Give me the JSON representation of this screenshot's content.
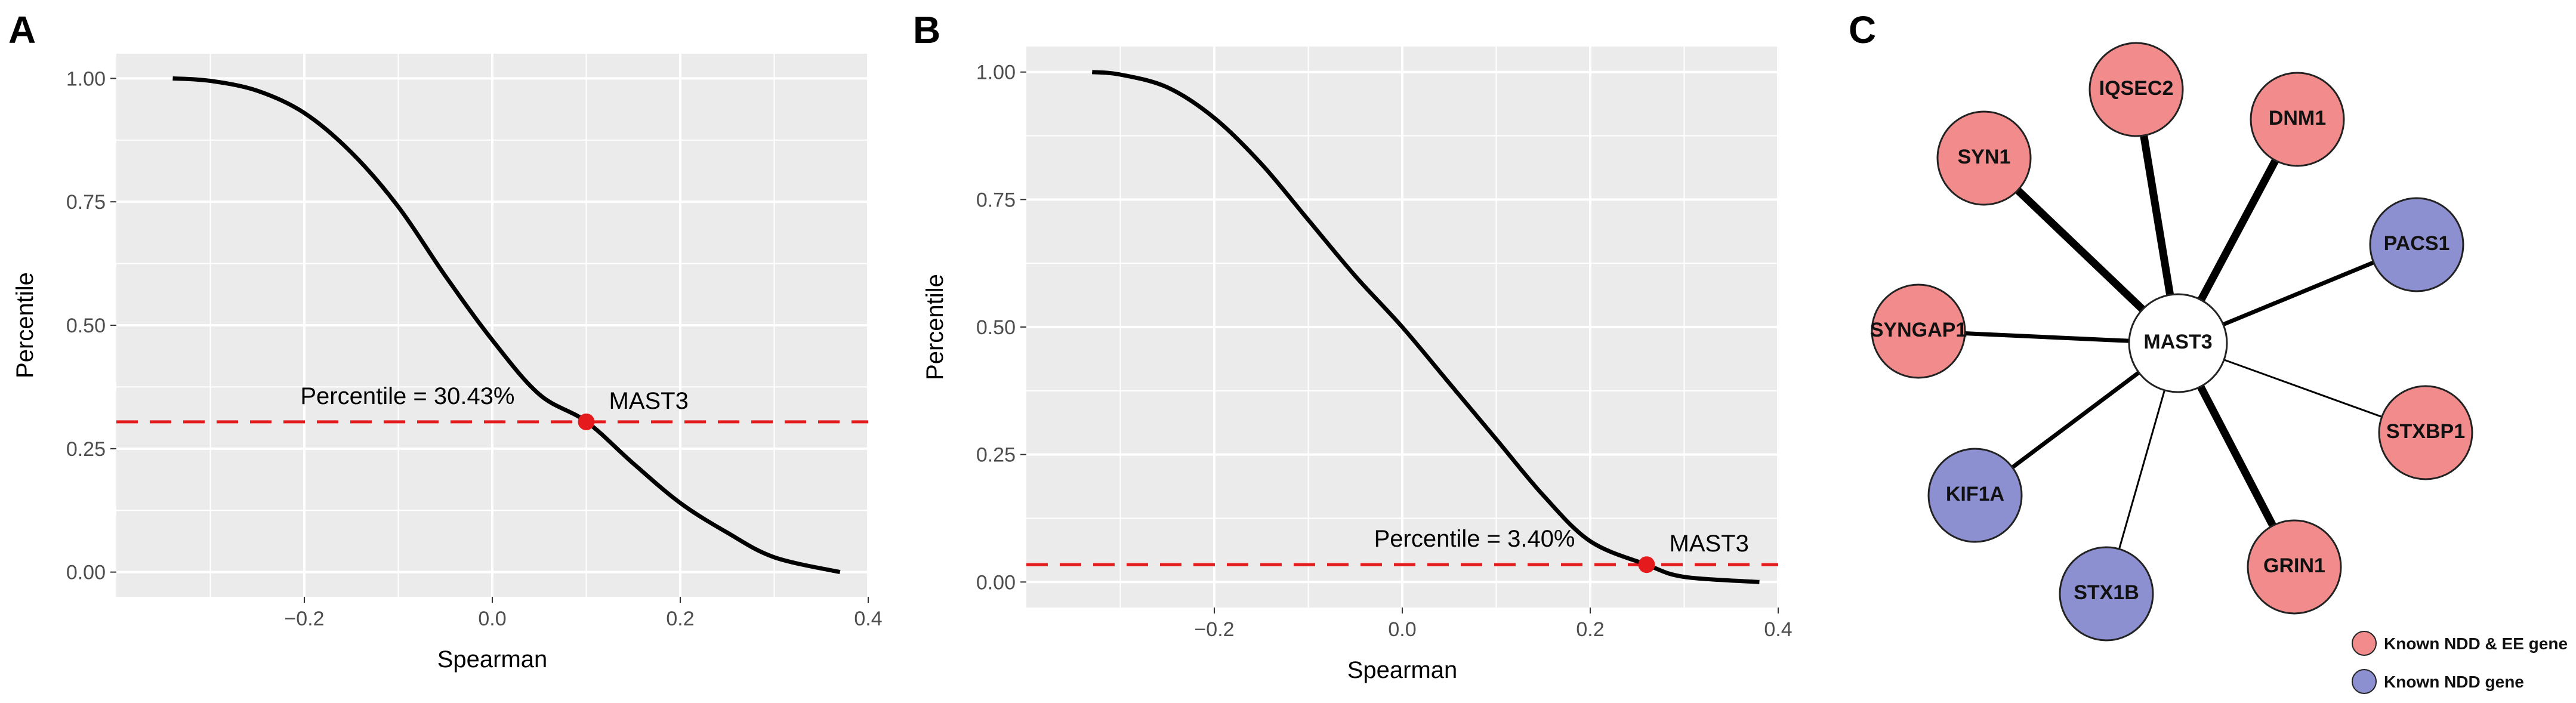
{
  "panels": {
    "a": {
      "label": "A"
    },
    "b": {
      "label": "B"
    },
    "c": {
      "label": "C"
    }
  },
  "chart_data": [
    {
      "type": "line",
      "panel": "A",
      "xlabel": "Spearman",
      "ylabel": "Percentile",
      "xlim": [
        -0.4,
        0.4
      ],
      "ylim": [
        -0.05,
        1.05
      ],
      "xticks": [
        -0.2,
        0.0,
        0.2,
        0.4
      ],
      "xtick_labels": [
        "−0.2",
        "0.0",
        "0.2",
        "0.4"
      ],
      "yticks": [
        0.0,
        0.25,
        0.5,
        0.75,
        1.0
      ],
      "ytick_labels": [
        "0.00",
        "0.25",
        "0.50",
        "0.75",
        "1.00"
      ],
      "grid": true,
      "x": [
        -0.34,
        -0.3,
        -0.25,
        -0.2,
        -0.15,
        -0.1,
        -0.05,
        0.0,
        0.05,
        0.1,
        0.15,
        0.2,
        0.25,
        0.3,
        0.37
      ],
      "y": [
        1.0,
        0.995,
        0.975,
        0.93,
        0.85,
        0.74,
        0.6,
        0.47,
        0.36,
        0.305,
        0.22,
        0.14,
        0.08,
        0.03,
        0.0
      ],
      "hline": {
        "y": 0.3043,
        "color": "#e41a1c",
        "style": "dashed"
      },
      "highlight": {
        "x": 0.1,
        "y": 0.3043,
        "label": "MAST3",
        "color": "#e41a1c"
      },
      "annotation": "Percentile = 30.43%"
    },
    {
      "type": "line",
      "panel": "B",
      "xlabel": "Spearman",
      "ylabel": "Percentile",
      "xlim": [
        -0.4,
        0.4
      ],
      "ylim": [
        -0.05,
        1.05
      ],
      "xticks": [
        -0.2,
        0.0,
        0.2,
        0.4
      ],
      "xtick_labels": [
        "−0.2",
        "0.0",
        "0.2",
        "0.4"
      ],
      "yticks": [
        0.0,
        0.25,
        0.5,
        0.75,
        1.0
      ],
      "ytick_labels": [
        "0.00",
        "0.25",
        "0.50",
        "0.75",
        "1.00"
      ],
      "grid": true,
      "x": [
        -0.33,
        -0.3,
        -0.25,
        -0.2,
        -0.15,
        -0.1,
        -0.05,
        0.0,
        0.05,
        0.1,
        0.15,
        0.2,
        0.26,
        0.3,
        0.38
      ],
      "y": [
        1.0,
        0.995,
        0.97,
        0.91,
        0.82,
        0.71,
        0.6,
        0.5,
        0.39,
        0.28,
        0.17,
        0.08,
        0.034,
        0.01,
        0.0
      ],
      "hline": {
        "y": 0.034,
        "color": "#e41a1c",
        "style": "dashed"
      },
      "highlight": {
        "x": 0.26,
        "y": 0.034,
        "label": "MAST3",
        "color": "#e41a1c"
      },
      "annotation": "Percentile = 3.40%"
    }
  ],
  "network": {
    "center": {
      "label": "MAST3",
      "color": "#ffffff"
    },
    "nodes": [
      {
        "label": "IQSEC2",
        "type": "ndd_ee",
        "weight": "thick"
      },
      {
        "label": "DNM1",
        "type": "ndd_ee",
        "weight": "thick"
      },
      {
        "label": "PACS1",
        "type": "ndd",
        "weight": "medium"
      },
      {
        "label": "STXBP1",
        "type": "ndd_ee",
        "weight": "thin"
      },
      {
        "label": "GRIN1",
        "type": "ndd_ee",
        "weight": "thick"
      },
      {
        "label": "STX1B",
        "type": "ndd",
        "weight": "thin"
      },
      {
        "label": "KIF1A",
        "type": "ndd",
        "weight": "medium"
      },
      {
        "label": "SYNGAP1",
        "type": "ndd_ee",
        "weight": "medium"
      },
      {
        "label": "SYN1",
        "type": "ndd_ee",
        "weight": "thick"
      }
    ],
    "colors": {
      "ndd_ee": "#f28b8b",
      "ndd": "#8c8fd0"
    },
    "legend": [
      {
        "type": "ndd_ee",
        "label": "Known NDD & EE gene"
      },
      {
        "type": "ndd",
        "label": "Known NDD gene"
      }
    ]
  }
}
